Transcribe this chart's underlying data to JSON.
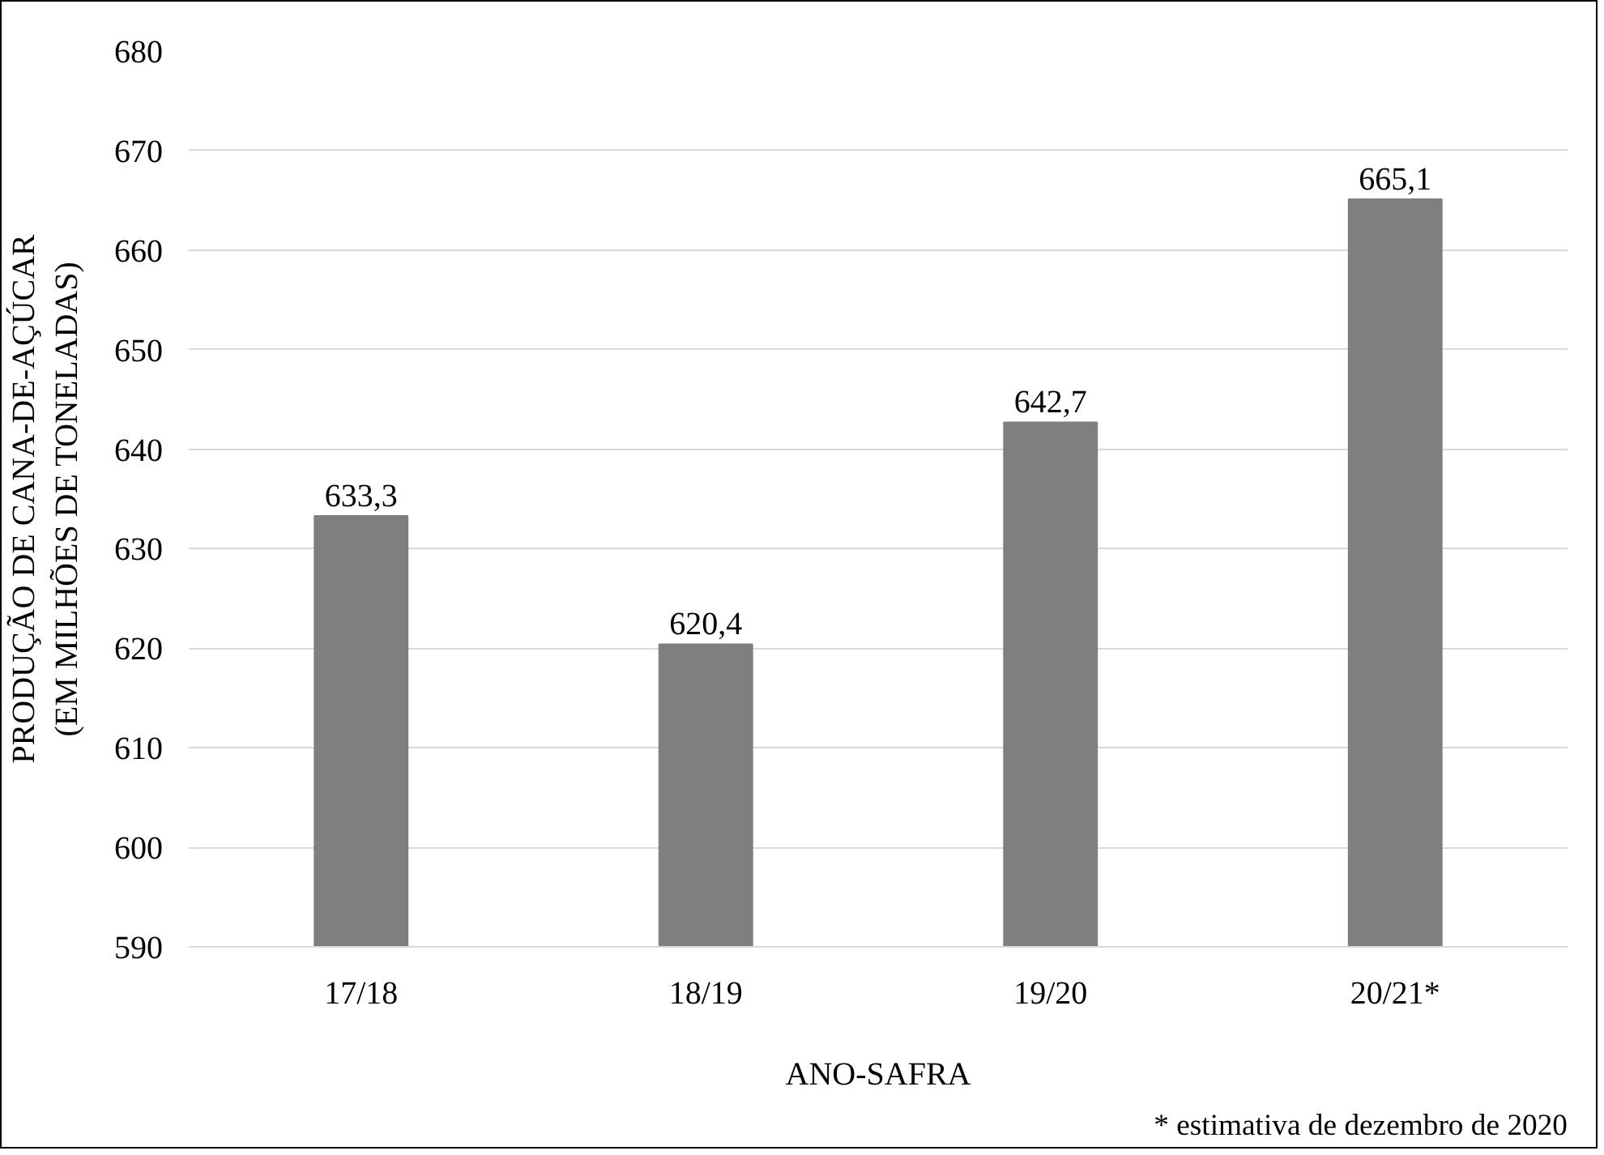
{
  "chart_data": {
    "type": "bar",
    "categories": [
      "17/18",
      "18/19",
      "19/20",
      "20/21*"
    ],
    "values": [
      633.3,
      620.4,
      642.7,
      665.1
    ],
    "value_labels": [
      "633,3",
      "620,4",
      "642,7",
      "665,1"
    ],
    "color": "#7f7f7f",
    "xlabel": "ANO-SAFRA",
    "ylabel": "PRODUÇÃO DE CANA-DE-AÇÚCAR\n(EM MILHÕES DE TONELADAS)",
    "ylim": [
      590,
      680
    ],
    "yticks": [
      590,
      600,
      610,
      620,
      630,
      640,
      650,
      660,
      670,
      680
    ],
    "grid": "y",
    "annotations": [
      "* estimativa de dezembro de 2020"
    ]
  }
}
